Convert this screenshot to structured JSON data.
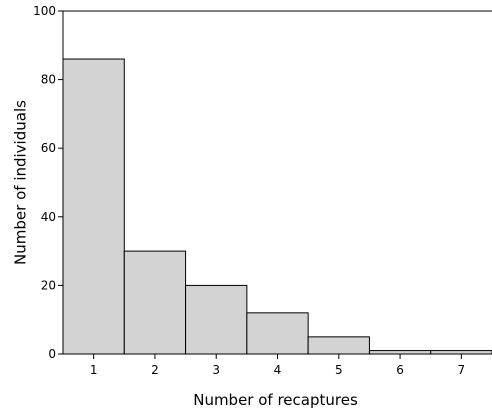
{
  "chart_data": {
    "type": "bar",
    "categories": [
      "1",
      "2",
      "3",
      "4",
      "5",
      "6",
      "7"
    ],
    "values": [
      86,
      30,
      20,
      12,
      5,
      1,
      1
    ],
    "title": "",
    "xlabel": "Number of recaptures",
    "ylabel": "Number of individuals",
    "ylim": [
      0,
      100
    ],
    "yticks": [
      "0",
      "20",
      "40",
      "60",
      "80",
      "100"
    ],
    "grid": false,
    "legend": "none",
    "colors": {
      "bar_fill": "#d3d3d3",
      "bar_stroke": "#000000",
      "axis": "#000000"
    }
  }
}
